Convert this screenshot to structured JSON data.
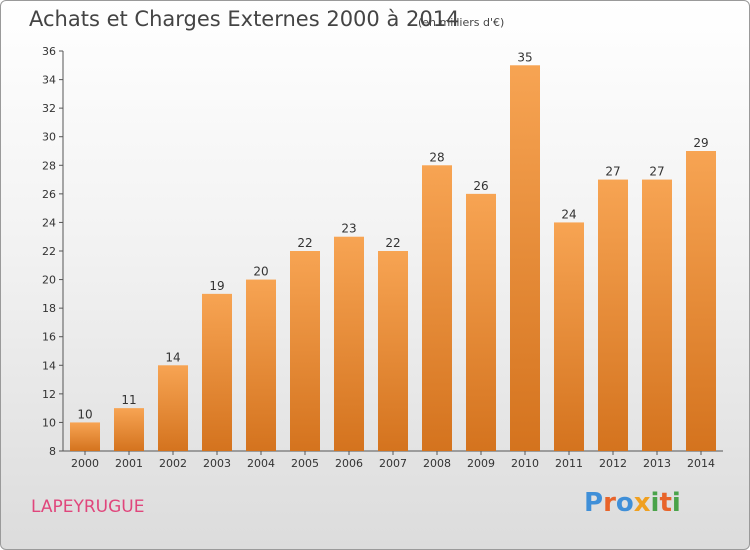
{
  "header": {
    "title": "Achats et Charges Externes 2000 à 2014",
    "subtitle": "(en milliers d'€)"
  },
  "footer": {
    "place": "LAPEYRUGUE",
    "brand_letters": [
      "P",
      "r",
      "o",
      "x",
      "i",
      "t",
      "i"
    ],
    "brand_colors": [
      "#3f8fd8",
      "#e8642a",
      "#3f8fd8",
      "#f0a020",
      "#4aa34a",
      "#e8642a",
      "#4aa34a"
    ]
  },
  "chart_data": {
    "type": "bar",
    "categories": [
      "2000",
      "2001",
      "2002",
      "2003",
      "2004",
      "2005",
      "2006",
      "2007",
      "2008",
      "2009",
      "2010",
      "2011",
      "2012",
      "2013",
      "2014"
    ],
    "values": [
      10,
      11,
      14,
      19,
      20,
      22,
      23,
      22,
      28,
      26,
      35,
      24,
      27,
      27,
      29
    ],
    "ylim": [
      8,
      36
    ],
    "yticks": [
      8,
      10,
      12,
      14,
      16,
      18,
      20,
      22,
      24,
      26,
      28,
      30,
      32,
      34,
      36
    ],
    "bar_color": "#f0953c",
    "grid": false
  }
}
